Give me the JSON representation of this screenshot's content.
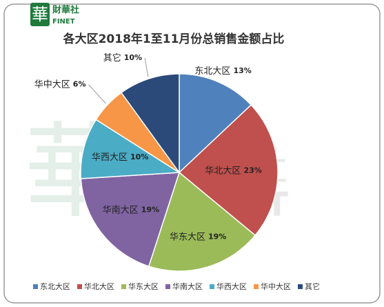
{
  "logo": {
    "mark": "華",
    "name": "財華社",
    "sub": "FINET"
  },
  "chart_data": {
    "type": "pie",
    "title": "各大区2018年1至11月份总销售金额占比",
    "categories": [
      "东北大区",
      "华北大区",
      "华东大区",
      "华南大区",
      "华西大区",
      "华中大区",
      "其它"
    ],
    "values": [
      13,
      23,
      19,
      19,
      10,
      6,
      10
    ],
    "value_labels": [
      "13%",
      "23%",
      "19%",
      "19%",
      "10%",
      "6%",
      "10%"
    ],
    "colors": [
      "#4f81bd",
      "#c0504d",
      "#9bbb59",
      "#8064a2",
      "#4bacc6",
      "#f79646",
      "#2b4a7a"
    ],
    "legend": "bottom"
  }
}
